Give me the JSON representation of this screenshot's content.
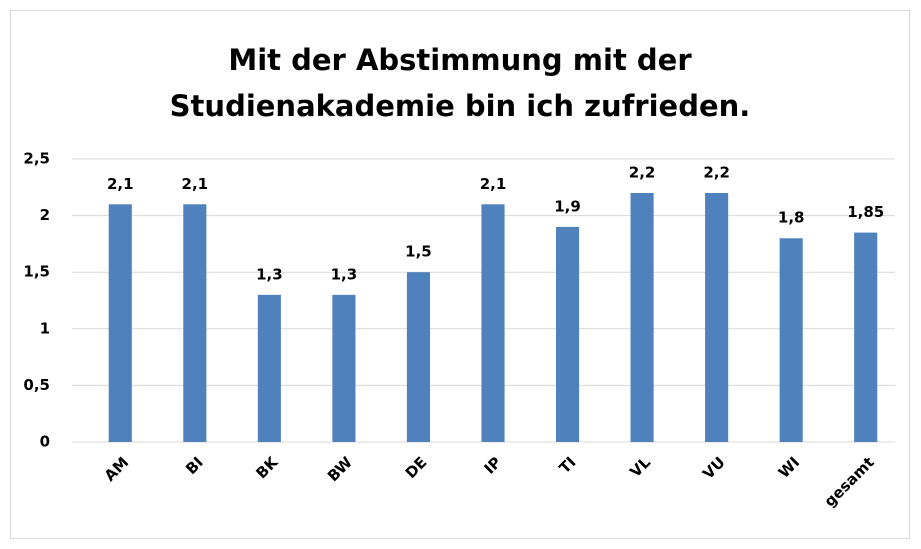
{
  "chart_data": {
    "type": "bar",
    "title": [
      "Mit der Abstimmung mit der",
      "Studienakademie bin ich zufrieden."
    ],
    "categories": [
      "AM",
      "BI",
      "BK",
      "BW",
      "DE",
      "IP",
      "TI",
      "VL",
      "VU",
      "WI",
      "gesamt"
    ],
    "values": [
      2.1,
      2.1,
      1.3,
      1.3,
      1.5,
      2.1,
      1.9,
      2.2,
      2.2,
      1.8,
      1.85
    ],
    "value_labels": [
      "2,1",
      "2,1",
      "1,3",
      "1,3",
      "1,5",
      "2,1",
      "1,9",
      "2,2",
      "2,2",
      "1,8",
      "1,85"
    ],
    "color": "#4f81bd",
    "ylim": [
      0,
      2.5
    ],
    "yticks": [
      0,
      {
        "value": 0.5,
        "label": "0,5"
      },
      1,
      {
        "value": 1.5,
        "label": "1,5"
      },
      2,
      {
        "value": 2.5,
        "label": "2,5"
      }
    ],
    "grid": true
  }
}
